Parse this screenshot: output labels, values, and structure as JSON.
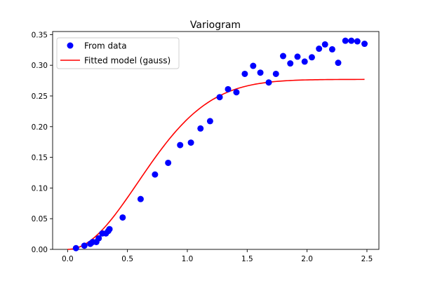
{
  "chart_data": {
    "type": "scatter",
    "title": "Variogram",
    "xlabel": "",
    "ylabel": "",
    "xlim": [
      -0.125,
      2.6
    ],
    "ylim": [
      0.0,
      0.355
    ],
    "xticks": [
      0.0,
      0.5,
      1.0,
      1.5,
      2.0,
      2.5
    ],
    "xtick_labels": [
      "0.0",
      "0.5",
      "1.0",
      "1.5",
      "2.0",
      "2.5"
    ],
    "yticks": [
      0.0,
      0.05,
      0.1,
      0.15,
      0.2,
      0.25,
      0.3,
      0.35
    ],
    "ytick_labels": [
      "0.00",
      "0.05",
      "0.10",
      "0.15",
      "0.20",
      "0.25",
      "0.30",
      "0.35"
    ],
    "grid": false,
    "legend_position": "top-left",
    "series": [
      {
        "name": "From data",
        "kind": "scatter",
        "color": "#0000ff",
        "points": [
          [
            0.07,
            0.002
          ],
          [
            0.14,
            0.006
          ],
          [
            0.19,
            0.009
          ],
          [
            0.21,
            0.012
          ],
          [
            0.24,
            0.012
          ],
          [
            0.26,
            0.018
          ],
          [
            0.29,
            0.026
          ],
          [
            0.32,
            0.026
          ],
          [
            0.34,
            0.03
          ],
          [
            0.35,
            0.033
          ],
          [
            0.46,
            0.052
          ],
          [
            0.61,
            0.082
          ],
          [
            0.73,
            0.122
          ],
          [
            0.84,
            0.141
          ],
          [
            0.94,
            0.17
          ],
          [
            1.03,
            0.174
          ],
          [
            1.11,
            0.197
          ],
          [
            1.19,
            0.209
          ],
          [
            1.27,
            0.248
          ],
          [
            1.34,
            0.261
          ],
          [
            1.41,
            0.256
          ],
          [
            1.48,
            0.286
          ],
          [
            1.55,
            0.299
          ],
          [
            1.61,
            0.288
          ],
          [
            1.68,
            0.272
          ],
          [
            1.74,
            0.286
          ],
          [
            1.8,
            0.315
          ],
          [
            1.86,
            0.303
          ],
          [
            1.92,
            0.314
          ],
          [
            1.98,
            0.306
          ],
          [
            2.04,
            0.313
          ],
          [
            2.1,
            0.327
          ],
          [
            2.15,
            0.334
          ],
          [
            2.21,
            0.326
          ],
          [
            2.26,
            0.304
          ],
          [
            2.32,
            0.34
          ],
          [
            2.37,
            0.34
          ],
          [
            2.42,
            0.339
          ],
          [
            2.48,
            0.335
          ]
        ]
      },
      {
        "name": "Fitted model (gauss)",
        "kind": "line",
        "color": "#ff0000",
        "model": "gauss",
        "sill": 0.277,
        "range": 0.83,
        "x_start": 0.0,
        "x_end": 2.48
      }
    ]
  }
}
